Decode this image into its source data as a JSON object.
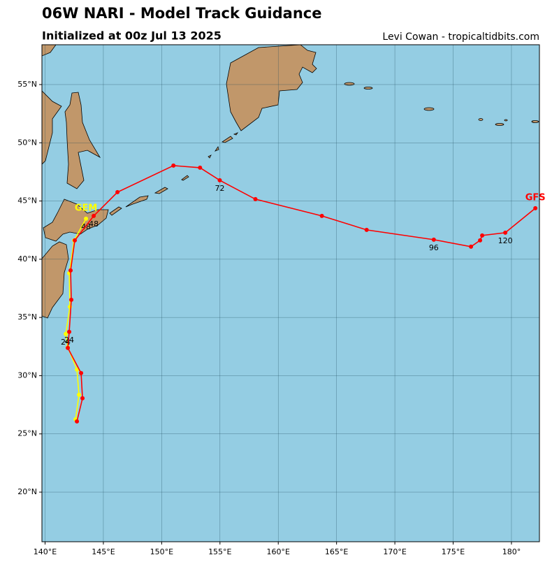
{
  "chart_data": {
    "type": "track_map",
    "title": "06W NARI - Model Track Guidance",
    "subtitle": "Initialized at 00z Jul 13 2025",
    "credit": "Levi Cowan - tropicaltidbits.com",
    "xlim": [
      139.73,
      182.4
    ],
    "ylim": [
      15.74,
      58.42
    ],
    "xticks": [
      {
        "value": 140,
        "label": "140°E"
      },
      {
        "value": 145,
        "label": "145°E"
      },
      {
        "value": 150,
        "label": "150°E"
      },
      {
        "value": 155,
        "label": "155°E"
      },
      {
        "value": 160,
        "label": "160°E"
      },
      {
        "value": 165,
        "label": "165°E"
      },
      {
        "value": 170,
        "label": "170°E"
      },
      {
        "value": 175,
        "label": "175°E"
      },
      {
        "value": 180,
        "label": "180°"
      }
    ],
    "yticks": [
      {
        "value": 20,
        "label": "20°N"
      },
      {
        "value": 25,
        "label": "25°N"
      },
      {
        "value": 30,
        "label": "30°N"
      },
      {
        "value": 35,
        "label": "35°N"
      },
      {
        "value": 40,
        "label": "40°N"
      },
      {
        "value": 45,
        "label": "45°N"
      },
      {
        "value": 50,
        "label": "50°N"
      },
      {
        "value": 55,
        "label": "55°N"
      }
    ],
    "grid": true,
    "series": [
      {
        "name": "GFS",
        "color": "#ff0000",
        "x": [
          142.73,
          143.21,
          143.09,
          141.95,
          142.07,
          142.25,
          142.19,
          142.55,
          144.17,
          146.21,
          151.01,
          153.29,
          154.98,
          158.04,
          163.74,
          167.58,
          173.34,
          176.53,
          177.31,
          177.49,
          179.47,
          182.05
        ],
        "values": [
          26.07,
          28.06,
          30.22,
          32.38,
          33.76,
          36.52,
          39.04,
          41.62,
          43.72,
          45.76,
          48.04,
          47.86,
          46.78,
          45.16,
          43.72,
          42.52,
          41.68,
          41.08,
          41.62,
          42.04,
          42.28,
          44.38
        ],
        "point_labels": [
          null,
          null,
          null,
          null,
          "24",
          null,
          null,
          null,
          "48",
          null,
          null,
          null,
          "72",
          null,
          null,
          null,
          "96",
          null,
          null,
          null,
          "120",
          null
        ]
      },
      {
        "name": "GEM",
        "color": "#ffff00",
        "x": [
          142.61,
          142.91,
          142.73,
          141.95,
          141.77,
          142.13,
          142.07,
          142.49,
          143.51
        ],
        "values": [
          26.25,
          28.36,
          30.52,
          32.44,
          33.58,
          35.92,
          38.8,
          41.62,
          43.48
        ],
        "point_labels": [
          null,
          null,
          null,
          null,
          "24",
          null,
          null,
          null,
          "48"
        ]
      }
    ]
  }
}
